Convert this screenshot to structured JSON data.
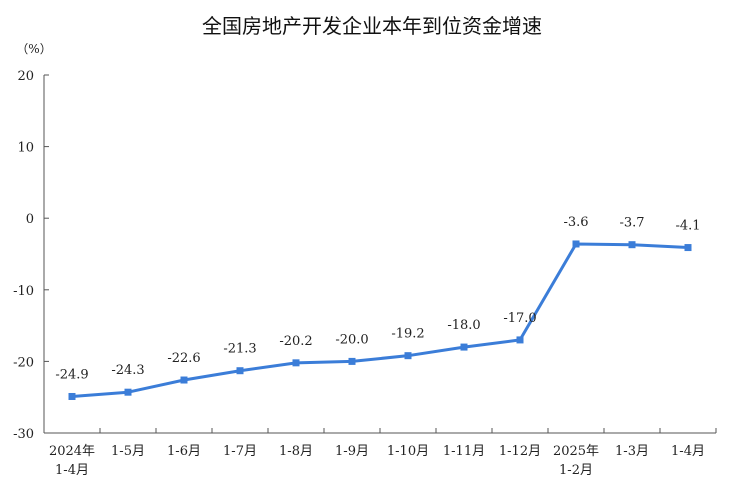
{
  "chart_data": {
    "type": "line",
    "title": "全国房地产开发企业本年到位资金增速",
    "unit": "（%）",
    "categories": [
      [
        "2024年",
        "1-4月"
      ],
      [
        "1-5月"
      ],
      [
        "1-6月"
      ],
      [
        "1-7月"
      ],
      [
        "1-8月"
      ],
      [
        "1-9月"
      ],
      [
        "1-10月"
      ],
      [
        "1-11月"
      ],
      [
        "1-12月"
      ],
      [
        "2025年",
        "1-2月"
      ],
      [
        "1-3月"
      ],
      [
        "1-4月"
      ]
    ],
    "values": [
      -24.9,
      -24.3,
      -22.6,
      -21.3,
      -20.2,
      -20.0,
      -19.2,
      -18.0,
      -17.0,
      -3.6,
      -3.7,
      -4.1
    ],
    "value_labels": [
      "-24.9",
      "-24.3",
      "-22.6",
      "-21.3",
      "-20.2",
      "-20.0",
      "-19.2",
      "-18.0",
      "-17.0",
      "-3.6",
      "-3.7",
      "-4.1"
    ],
    "ylim": [
      -30,
      20
    ],
    "yticks": [
      20,
      10,
      0,
      -10,
      -20,
      -30
    ],
    "grid": false,
    "legend": "none",
    "line_color": "#3b7dd8"
  }
}
